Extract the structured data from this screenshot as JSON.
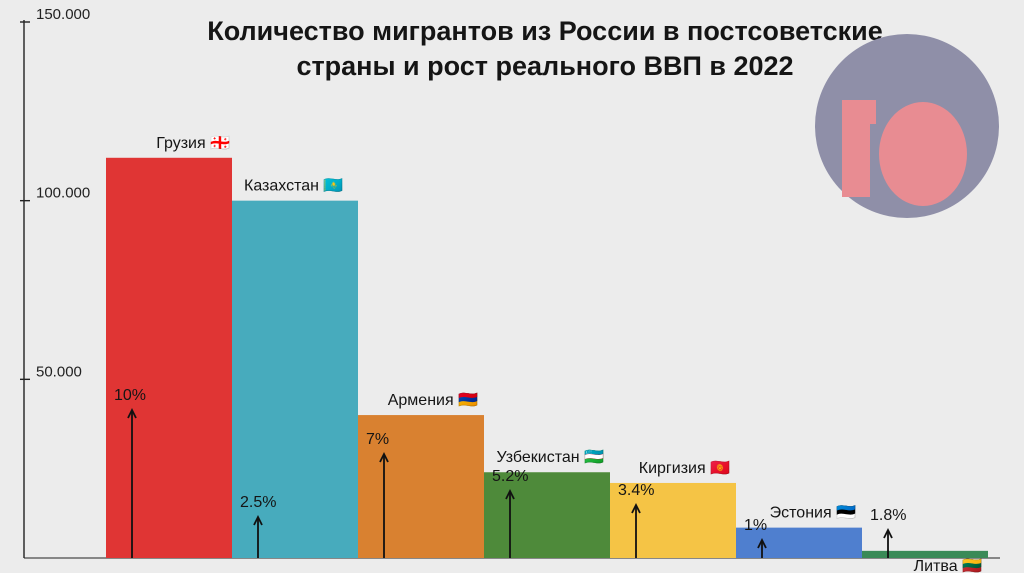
{
  "title": {
    "line1": "Количество мигрантов из России в постсоветские",
    "line2": "страны и рост реального ВВП в 2022"
  },
  "logo": {
    "text": "10",
    "bg_color": "#8f8fa8",
    "fg_color": "#e88c92"
  },
  "chart_data": {
    "type": "bar",
    "title": "Количество мигрантов из России в постсоветские страны и рост реального ВВП в 2022",
    "xlabel": "",
    "ylabel": "",
    "ylim": [
      0,
      150000
    ],
    "yticks": [
      50000,
      100000,
      150000
    ],
    "ytick_labels": [
      "50.000",
      "100.000",
      "150.000"
    ],
    "grid": false,
    "bars": [
      {
        "country": "Грузия",
        "flag": "🇬🇪",
        "value": 112000,
        "gdp_growth": "10%",
        "color": "#e03534"
      },
      {
        "country": "Казахстан",
        "flag": "🇰🇿",
        "value": 100000,
        "gdp_growth": "2.5%",
        "color": "#47abbd"
      },
      {
        "country": "Армения",
        "flag": "🇦🇲",
        "value": 40000,
        "gdp_growth": "7%",
        "color": "#d98130"
      },
      {
        "country": "Узбекистан",
        "flag": "🇺🇿",
        "value": 24000,
        "gdp_growth": "5.2%",
        "color": "#4e8a3a"
      },
      {
        "country": "Киргизия",
        "flag": "🇰🇬",
        "value": 21000,
        "gdp_growth": "3.4%",
        "color": "#f5c445"
      },
      {
        "country": "Эстония",
        "flag": "🇪🇪",
        "value": 8500,
        "gdp_growth": "1%",
        "color": "#4f7fcf"
      },
      {
        "country": "Литва",
        "flag": "🇱🇹",
        "value": 2000,
        "gdp_growth": "1.8%",
        "color": "#3a8a57"
      }
    ]
  }
}
